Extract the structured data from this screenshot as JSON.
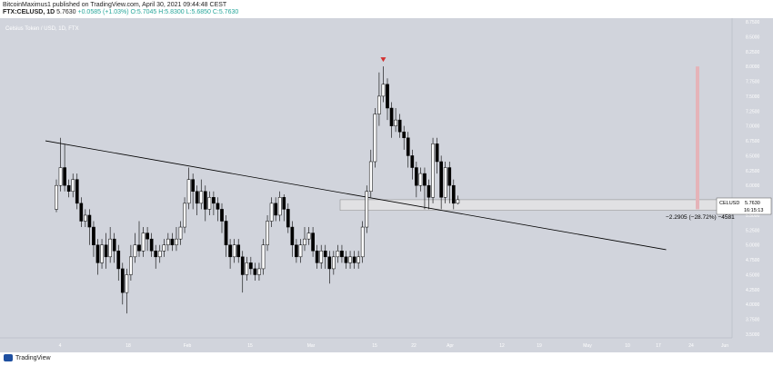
{
  "header": {
    "author_line": "BitcoinMaximus1 published on TradingView.com, April 30, 2021 09:44:48 CEST",
    "symbol": "FTX:CELUSD, 1D",
    "last": "5.7630",
    "change": "+0.0585 (+1.03%)",
    "open": "O:5.7045",
    "high": "H:5.8300",
    "low": "L:5.6850",
    "close": "C:5.7630"
  },
  "chart_title": "Celsius Token / USD, 1D, FTX",
  "footer": {
    "brand": "TradingView"
  },
  "price_tag": {
    "symbol": "CELUSD",
    "price": "5.7630",
    "countdown": "16:15:13"
  },
  "measurement_label": "−2.2905 (−28.72%) −4581",
  "colors": {
    "background": "#d1d4dc",
    "candle_up": "#ffffff",
    "candle_down": "#000000",
    "wick": "#000000",
    "trendline": "#000000",
    "support_zone": "#e6e6e6",
    "bar_marker": "#e5b3b8",
    "arrow_marker": "#d32f2f"
  },
  "chart_data": {
    "type": "candlestick",
    "title": "Celsius Token / USD, 1D, FTX",
    "ylim": [
      3.5,
      8.75
    ],
    "y_ticks": [
      "3.5000",
      "3.7500",
      "4.0000",
      "4.2500",
      "4.5000",
      "4.7500",
      "5.0000",
      "5.2500",
      "5.5000",
      "5.7500",
      "6.0000",
      "6.2500",
      "6.5000",
      "6.7500",
      "7.0000",
      "7.2500",
      "7.5000",
      "7.7500",
      "8.0000",
      "8.2500",
      "8.5000",
      "8.7500"
    ],
    "x_ticks": [
      "4",
      "18",
      "Feb",
      "15",
      "Mar",
      "15",
      "22",
      "Apr",
      "12",
      "19",
      "May",
      "10",
      "17",
      "24",
      "Jun"
    ],
    "candles": [
      [
        5.6,
        6.0,
        6.1,
        5.55
      ],
      [
        6.0,
        6.3,
        6.8,
        5.9
      ],
      [
        6.3,
        6.0,
        6.7,
        5.9
      ],
      [
        6.0,
        5.9,
        6.1,
        5.8
      ],
      [
        5.9,
        6.1,
        6.2,
        5.8
      ],
      [
        6.1,
        5.7,
        6.2,
        5.6
      ],
      [
        5.7,
        5.4,
        5.8,
        5.3
      ],
      [
        5.4,
        5.5,
        5.6,
        5.3
      ],
      [
        5.5,
        5.3,
        5.6,
        5.0
      ],
      [
        5.3,
        5.0,
        5.4,
        4.8
      ],
      [
        5.0,
        4.7,
        5.1,
        4.5
      ],
      [
        4.7,
        5.0,
        5.1,
        4.6
      ],
      [
        5.0,
        4.8,
        5.2,
        4.6
      ],
      [
        4.8,
        5.1,
        5.3,
        4.7
      ],
      [
        5.1,
        4.9,
        5.2,
        4.7
      ],
      [
        4.9,
        4.6,
        5.0,
        4.4
      ],
      [
        4.6,
        4.2,
        4.7,
        4.0
      ],
      [
        4.2,
        4.5,
        4.6,
        3.85
      ],
      [
        4.5,
        4.8,
        5.0,
        4.4
      ],
      [
        4.8,
        5.0,
        5.2,
        4.7
      ],
      [
        5.0,
        4.9,
        5.4,
        4.8
      ],
      [
        4.9,
        5.2,
        5.3,
        4.8
      ],
      [
        5.2,
        5.1,
        5.3,
        4.9
      ],
      [
        5.1,
        4.9,
        5.2,
        4.8
      ],
      [
        4.9,
        4.8,
        5.0,
        4.6
      ],
      [
        4.8,
        4.9,
        5.0,
        4.7
      ],
      [
        4.9,
        5.0,
        5.1,
        4.8
      ],
      [
        5.0,
        5.1,
        5.2,
        4.9
      ],
      [
        5.1,
        5.0,
        5.2,
        4.9
      ],
      [
        5.0,
        5.1,
        5.3,
        4.9
      ],
      [
        5.1,
        5.3,
        5.4,
        5.0
      ],
      [
        5.3,
        5.7,
        5.8,
        5.2
      ],
      [
        5.7,
        6.1,
        6.3,
        5.6
      ],
      [
        6.1,
        5.9,
        6.2,
        5.6
      ],
      [
        5.9,
        5.7,
        6.0,
        5.5
      ],
      [
        5.7,
        5.9,
        6.1,
        5.6
      ],
      [
        5.9,
        5.6,
        6.0,
        5.4
      ],
      [
        5.6,
        5.8,
        5.9,
        5.5
      ],
      [
        5.8,
        5.7,
        5.9,
        5.5
      ],
      [
        5.7,
        5.6,
        5.8,
        5.4
      ],
      [
        5.6,
        5.4,
        5.7,
        5.2
      ],
      [
        5.4,
        5.0,
        5.5,
        4.8
      ],
      [
        5.0,
        4.8,
        5.1,
        4.6
      ],
      [
        4.8,
        5.0,
        5.1,
        4.7
      ],
      [
        5.0,
        4.8,
        5.1,
        4.7
      ],
      [
        4.8,
        4.5,
        4.9,
        4.2
      ],
      [
        4.5,
        4.7,
        4.8,
        4.4
      ],
      [
        4.7,
        4.6,
        4.8,
        4.5
      ],
      [
        4.6,
        4.5,
        4.7,
        4.4
      ],
      [
        4.5,
        4.6,
        4.7,
        4.4
      ],
      [
        4.6,
        5.0,
        5.1,
        4.5
      ],
      [
        5.0,
        5.4,
        5.5,
        4.9
      ],
      [
        5.4,
        5.7,
        5.8,
        5.3
      ],
      [
        5.7,
        5.5,
        5.8,
        5.4
      ],
      [
        5.5,
        5.8,
        5.9,
        5.4
      ],
      [
        5.8,
        5.6,
        5.85,
        5.4
      ],
      [
        5.6,
        5.3,
        5.7,
        5.2
      ],
      [
        5.3,
        5.0,
        5.4,
        4.8
      ],
      [
        5.0,
        4.8,
        5.1,
        4.7
      ],
      [
        4.8,
        5.0,
        5.1,
        4.7
      ],
      [
        5.0,
        5.1,
        5.3,
        4.9
      ],
      [
        5.1,
        5.2,
        5.3,
        5.0
      ],
      [
        5.2,
        4.9,
        5.3,
        4.8
      ],
      [
        4.9,
        4.7,
        5.0,
        4.6
      ],
      [
        4.7,
        4.9,
        5.0,
        4.6
      ],
      [
        4.9,
        4.8,
        5.0,
        4.6
      ],
      [
        4.8,
        4.6,
        4.9,
        4.35
      ],
      [
        4.6,
        4.8,
        4.9,
        4.5
      ],
      [
        4.8,
        4.9,
        5.0,
        4.7
      ],
      [
        4.9,
        4.8,
        5.0,
        4.7
      ],
      [
        4.8,
        4.7,
        4.9,
        4.6
      ],
      [
        4.7,
        4.8,
        4.9,
        4.6
      ],
      [
        4.8,
        4.7,
        4.9,
        4.6
      ],
      [
        4.7,
        4.8,
        4.9,
        4.6
      ],
      [
        4.8,
        5.3,
        5.4,
        4.7
      ],
      [
        5.3,
        5.9,
        6.0,
        5.2
      ],
      [
        5.9,
        6.4,
        6.6,
        5.8
      ],
      [
        6.4,
        7.2,
        7.3,
        6.3
      ],
      [
        7.2,
        7.5,
        7.9,
        7.0
      ],
      [
        7.5,
        7.7,
        8.0,
        7.4
      ],
      [
        7.7,
        7.3,
        7.8,
        7.1
      ],
      [
        7.3,
        7.0,
        7.4,
        6.8
      ],
      [
        7.0,
        7.1,
        7.3,
        6.9
      ],
      [
        7.1,
        6.9,
        7.2,
        6.8
      ],
      [
        6.9,
        6.8,
        7.0,
        6.6
      ],
      [
        6.8,
        6.5,
        6.9,
        6.3
      ],
      [
        6.5,
        6.3,
        6.6,
        6.1
      ],
      [
        6.3,
        6.0,
        6.4,
        5.8
      ],
      [
        6.0,
        6.2,
        6.3,
        5.9
      ],
      [
        6.2,
        6.0,
        6.3,
        5.6
      ],
      [
        6.0,
        5.8,
        6.1,
        5.6
      ],
      [
        5.8,
        6.7,
        6.8,
        5.7
      ],
      [
        6.7,
        6.4,
        6.8,
        6.2
      ],
      [
        6.4,
        5.8,
        6.5,
        5.6
      ],
      [
        5.8,
        6.3,
        6.4,
        5.7
      ],
      [
        6.3,
        6.0,
        6.4,
        5.7
      ],
      [
        6.0,
        5.7,
        6.1,
        5.6
      ],
      [
        5.7,
        5.76,
        5.83,
        5.68
      ]
    ],
    "annotations": {
      "trendline_from": [
        0,
        6.75
      ],
      "trendline_to": [
        150,
        4.92
      ],
      "support_zone": [
        5.58,
        5.76
      ],
      "peak_marker_index": 79
    }
  }
}
